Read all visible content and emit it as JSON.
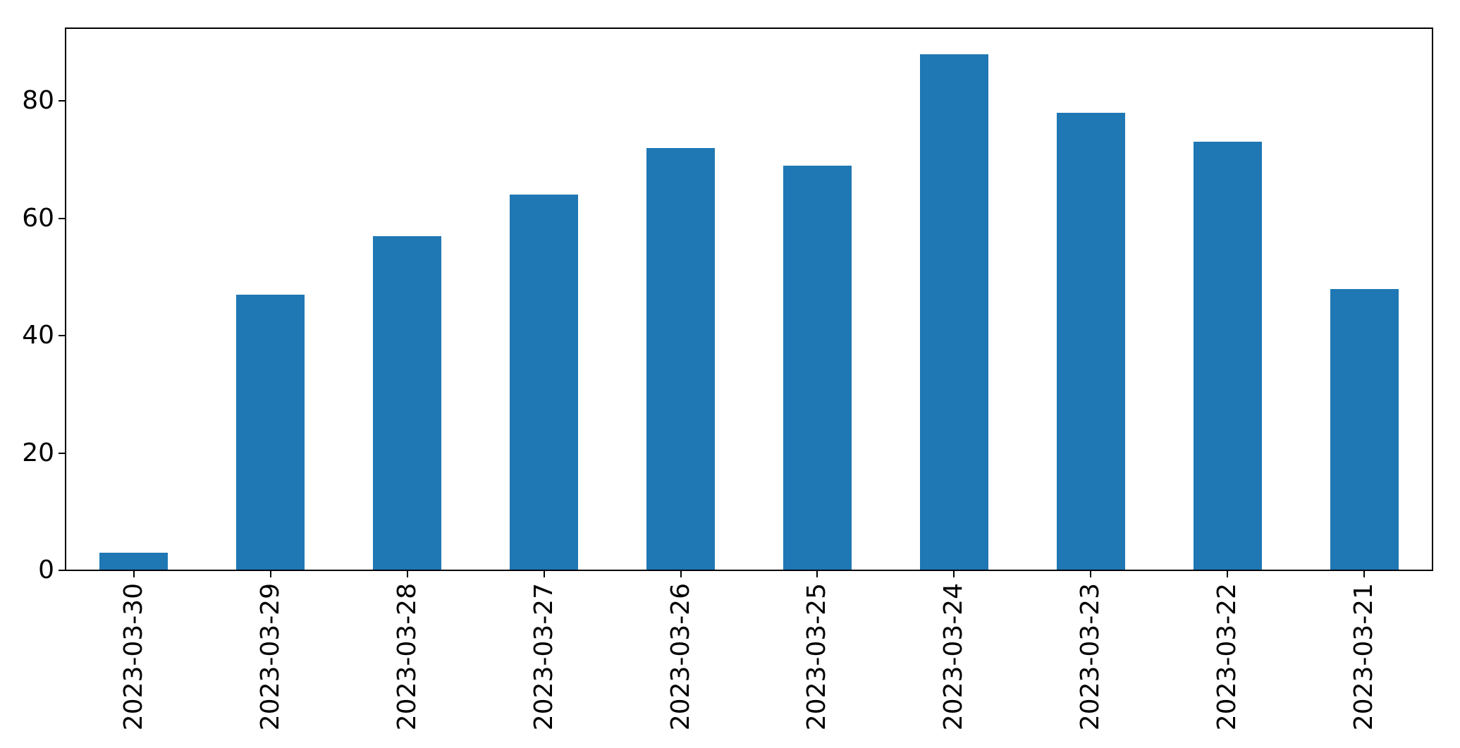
{
  "figure": {
    "background_color": "#ffffff",
    "title": ""
  },
  "chart_data": {
    "type": "bar",
    "title": "",
    "xlabel": "",
    "ylabel": "",
    "categories": [
      "2023-03-30",
      "2023-03-29",
      "2023-03-28",
      "2023-03-27",
      "2023-03-26",
      "2023-03-25",
      "2023-03-24",
      "2023-03-23",
      "2023-03-22",
      "2023-03-21"
    ],
    "values": [
      3,
      47,
      57,
      64,
      72,
      69,
      88,
      78,
      73,
      48
    ],
    "ylim": [
      0,
      92.4
    ],
    "yticks": [
      0,
      20,
      40,
      60,
      80
    ],
    "x_tick_rotation_degrees": 90,
    "bar_color": "#1f77b4",
    "bar_width_fraction": 0.5,
    "axis_color": "#000000",
    "tick_label_color": "#000000",
    "grid": false,
    "legend": null
  }
}
